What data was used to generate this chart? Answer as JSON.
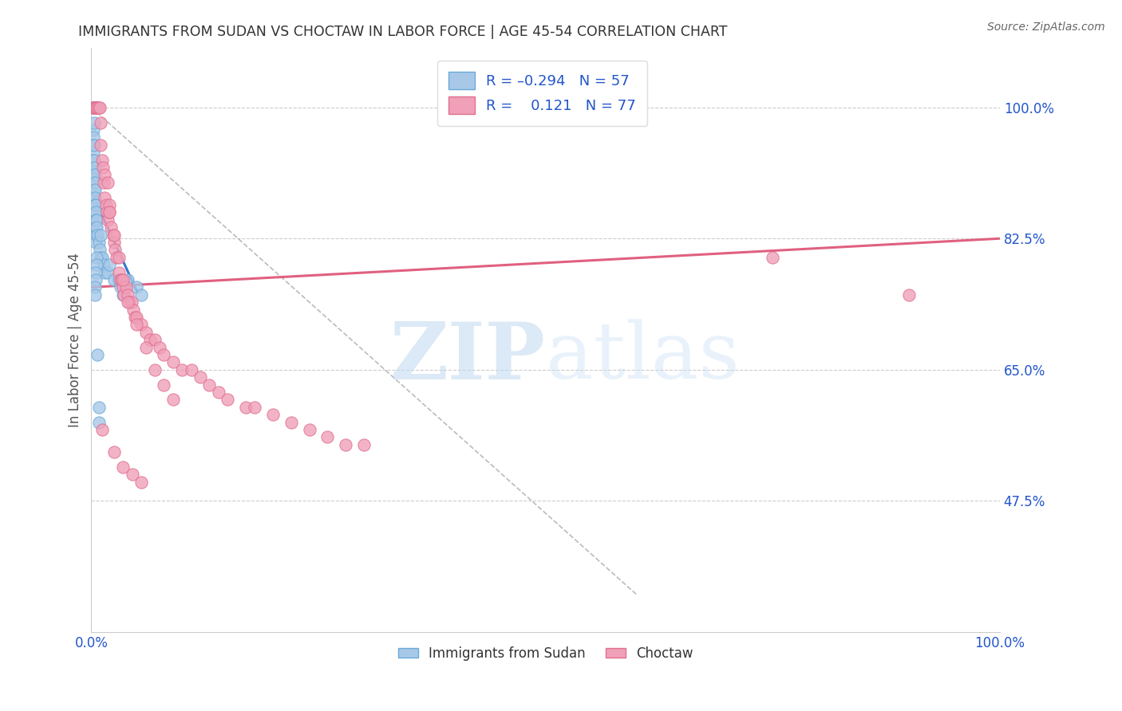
{
  "title": "IMMIGRANTS FROM SUDAN VS CHOCTAW IN LABOR FORCE | AGE 45-54 CORRELATION CHART",
  "source": "Source: ZipAtlas.com",
  "ylabel": "In Labor Force | Age 45-54",
  "ytick_labels": [
    "100.0%",
    "82.5%",
    "65.0%",
    "47.5%"
  ],
  "ytick_values": [
    1.0,
    0.825,
    0.65,
    0.475
  ],
  "xlim": [
    0.0,
    1.0
  ],
  "ylim": [
    0.3,
    1.08
  ],
  "sudan_color": "#a8c8e8",
  "sudan_edge_color": "#6aaad8",
  "choctaw_color": "#f0a0b8",
  "choctaw_edge_color": "#e07090",
  "sudan_scatter_x": [
    0.002,
    0.002,
    0.002,
    0.002,
    0.002,
    0.002,
    0.002,
    0.002,
    0.002,
    0.003,
    0.003,
    0.003,
    0.003,
    0.003,
    0.003,
    0.003,
    0.004,
    0.004,
    0.004,
    0.004,
    0.004,
    0.004,
    0.004,
    0.005,
    0.005,
    0.005,
    0.005,
    0.005,
    0.005,
    0.006,
    0.006,
    0.007,
    0.008,
    0.009,
    0.01,
    0.01,
    0.012,
    0.014,
    0.015,
    0.018,
    0.02,
    0.025,
    0.03,
    0.032,
    0.035,
    0.04,
    0.05,
    0.055,
    0.007,
    0.008,
    0.008,
    0.006,
    0.006,
    0.005,
    0.005,
    0.004,
    0.004
  ],
  "sudan_scatter_y": [
    1.0,
    1.0,
    0.97,
    0.96,
    0.95,
    0.94,
    0.93,
    0.92,
    0.91,
    0.98,
    0.95,
    0.93,
    0.91,
    0.9,
    0.89,
    0.88,
    0.92,
    0.91,
    0.9,
    0.89,
    0.88,
    0.87,
    0.86,
    0.87,
    0.86,
    0.85,
    0.84,
    0.83,
    0.82,
    0.85,
    0.84,
    0.83,
    0.82,
    0.81,
    0.83,
    0.8,
    0.8,
    0.79,
    0.78,
    0.78,
    0.79,
    0.77,
    0.77,
    0.76,
    0.75,
    0.77,
    0.76,
    0.75,
    0.67,
    0.6,
    0.58,
    0.8,
    0.79,
    0.78,
    0.77,
    0.76,
    0.75
  ],
  "choctaw_scatter_x": [
    0.002,
    0.002,
    0.003,
    0.004,
    0.005,
    0.006,
    0.007,
    0.008,
    0.009,
    0.01,
    0.01,
    0.012,
    0.013,
    0.014,
    0.015,
    0.016,
    0.017,
    0.018,
    0.02,
    0.02,
    0.022,
    0.024,
    0.025,
    0.026,
    0.028,
    0.03,
    0.032,
    0.033,
    0.035,
    0.036,
    0.038,
    0.04,
    0.042,
    0.044,
    0.046,
    0.048,
    0.05,
    0.055,
    0.06,
    0.065,
    0.07,
    0.075,
    0.08,
    0.09,
    0.1,
    0.11,
    0.12,
    0.13,
    0.14,
    0.15,
    0.17,
    0.18,
    0.2,
    0.22,
    0.24,
    0.26,
    0.28,
    0.3,
    0.015,
    0.018,
    0.02,
    0.025,
    0.03,
    0.035,
    0.04,
    0.05,
    0.06,
    0.07,
    0.08,
    0.09,
    0.75,
    0.9,
    0.012,
    0.025,
    0.035,
    0.045,
    0.055
  ],
  "choctaw_scatter_y": [
    1.0,
    1.0,
    1.0,
    1.0,
    1.0,
    1.0,
    1.0,
    1.0,
    1.0,
    0.98,
    0.95,
    0.93,
    0.92,
    0.9,
    0.88,
    0.87,
    0.86,
    0.85,
    0.87,
    0.86,
    0.84,
    0.83,
    0.82,
    0.81,
    0.8,
    0.78,
    0.77,
    0.77,
    0.76,
    0.75,
    0.76,
    0.75,
    0.74,
    0.74,
    0.73,
    0.72,
    0.72,
    0.71,
    0.7,
    0.69,
    0.69,
    0.68,
    0.67,
    0.66,
    0.65,
    0.65,
    0.64,
    0.63,
    0.62,
    0.61,
    0.6,
    0.6,
    0.59,
    0.58,
    0.57,
    0.56,
    0.55,
    0.55,
    0.91,
    0.9,
    0.86,
    0.83,
    0.8,
    0.77,
    0.74,
    0.71,
    0.68,
    0.65,
    0.63,
    0.61,
    0.8,
    0.75,
    0.57,
    0.54,
    0.52,
    0.51,
    0.5
  ],
  "sudan_line_x": [
    0.001,
    0.05
  ],
  "sudan_line_y": [
    0.885,
    0.755
  ],
  "choctaw_line_x": [
    0.0,
    1.0
  ],
  "choctaw_line_y": [
    0.76,
    0.825
  ],
  "dashed_line_x": [
    0.0,
    0.6
  ],
  "dashed_line_y": [
    1.0,
    0.35
  ],
  "background_color": "#ffffff",
  "grid_color": "#cccccc",
  "axis_label_color": "#2255cc",
  "title_color": "#333333",
  "source_color": "#666666"
}
